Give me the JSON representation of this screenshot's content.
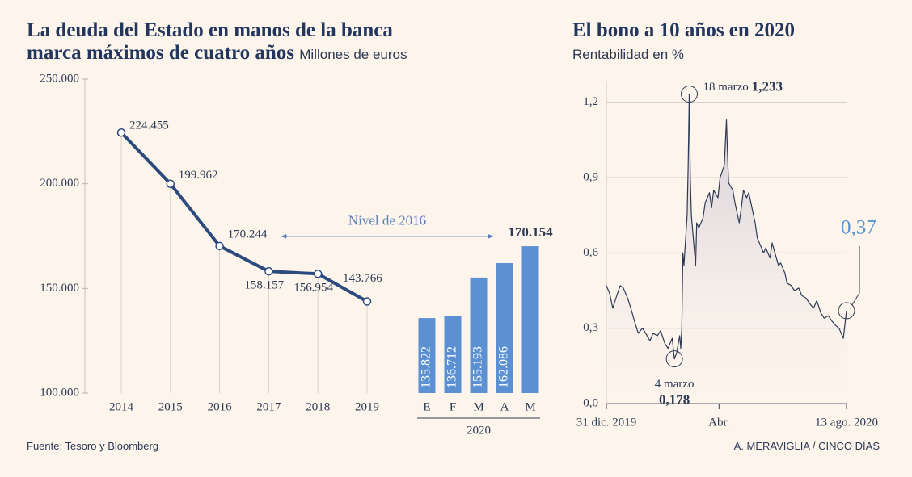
{
  "chart_data": [
    {
      "type": "line",
      "title": "La deuda del Estado en manos de la banca marca máximos de cuatro años",
      "subtitle": "Millones de euros",
      "categories": [
        "2014",
        "2015",
        "2016",
        "2017",
        "2018",
        "2019"
      ],
      "values": [
        224455,
        199962,
        170244,
        158157,
        156954,
        143766
      ],
      "value_labels": [
        "224.455",
        "199.962",
        "170.244",
        "158.157",
        "156.954",
        "143.766"
      ],
      "color": "#2b4a7e",
      "annotation": "Nivel de 2016",
      "ylim": [
        100000,
        250000
      ],
      "yticks": [
        {
          "value": 100000,
          "label": "100.000"
        },
        {
          "value": 150000,
          "label": "150.000"
        },
        {
          "value": 200000,
          "label": "200.000"
        },
        {
          "value": 250000,
          "label": "250.000"
        }
      ]
    },
    {
      "type": "bar",
      "xlabel": "2020",
      "categories": [
        "E",
        "F",
        "M",
        "A",
        "M"
      ],
      "values": [
        135822,
        136712,
        155193,
        162086,
        170154
      ],
      "value_labels": [
        "135.822",
        "136.712",
        "155.193",
        "162.086",
        "170.154"
      ],
      "color": "#5b91d2",
      "ylim": [
        100000,
        250000
      ]
    },
    {
      "type": "line",
      "title": "El bono a 10 años en 2020",
      "subtitle": "Rentabilidad en %",
      "color": "#2e3a55",
      "highlight_color": "#5b91d2",
      "grid": true,
      "x": [
        "2019-12-31",
        "2020-01-03",
        "2020-01-06",
        "2020-01-09",
        "2020-01-13",
        "2020-01-16",
        "2020-01-20",
        "2020-01-23",
        "2020-01-27",
        "2020-01-30",
        "2020-02-03",
        "2020-02-06",
        "2020-02-10",
        "2020-02-13",
        "2020-02-17",
        "2020-02-20",
        "2020-02-24",
        "2020-02-27",
        "2020-03-02",
        "2020-03-04",
        "2020-03-06",
        "2020-03-09",
        "2020-03-10",
        "2020-03-11",
        "2020-03-12",
        "2020-03-13",
        "2020-03-16",
        "2020-03-17",
        "2020-03-18",
        "2020-03-19",
        "2020-03-20",
        "2020-03-23",
        "2020-03-24",
        "2020-03-25",
        "2020-03-27",
        "2020-03-31",
        "2020-04-02",
        "2020-04-06",
        "2020-04-08",
        "2020-04-10",
        "2020-04-14",
        "2020-04-16",
        "2020-04-20",
        "2020-04-22",
        "2020-04-23",
        "2020-04-24",
        "2020-04-28",
        "2020-04-30",
        "2020-05-04",
        "2020-05-06",
        "2020-05-08",
        "2020-05-11",
        "2020-05-13",
        "2020-05-15",
        "2020-05-19",
        "2020-05-21",
        "2020-05-25",
        "2020-05-27",
        "2020-05-29",
        "2020-06-02",
        "2020-06-04",
        "2020-06-08",
        "2020-06-10",
        "2020-06-12",
        "2020-06-16",
        "2020-06-18",
        "2020-06-22",
        "2020-06-25",
        "2020-06-29",
        "2020-07-02",
        "2020-07-06",
        "2020-07-09",
        "2020-07-13",
        "2020-07-16",
        "2020-07-20",
        "2020-07-23",
        "2020-07-27",
        "2020-07-30",
        "2020-08-03",
        "2020-08-06",
        "2020-08-10",
        "2020-08-13"
      ],
      "values": [
        0.47,
        0.44,
        0.38,
        0.42,
        0.47,
        0.46,
        0.42,
        0.38,
        0.32,
        0.28,
        0.3,
        0.28,
        0.25,
        0.28,
        0.27,
        0.29,
        0.24,
        0.22,
        0.26,
        0.178,
        0.2,
        0.27,
        0.22,
        0.3,
        0.6,
        0.55,
        0.75,
        0.95,
        1.233,
        0.9,
        0.75,
        0.6,
        0.55,
        0.72,
        0.7,
        0.74,
        0.8,
        0.84,
        0.78,
        0.85,
        0.82,
        0.9,
        0.95,
        1.13,
        1.0,
        0.88,
        0.85,
        0.8,
        0.72,
        0.78,
        0.85,
        0.82,
        0.84,
        0.8,
        0.72,
        0.66,
        0.62,
        0.6,
        0.62,
        0.58,
        0.64,
        0.58,
        0.55,
        0.56,
        0.52,
        0.48,
        0.47,
        0.45,
        0.46,
        0.43,
        0.42,
        0.4,
        0.38,
        0.41,
        0.36,
        0.34,
        0.35,
        0.33,
        0.31,
        0.3,
        0.26,
        0.37
      ],
      "value_labels": [
        null,
        null,
        null,
        null,
        null,
        null,
        null,
        null,
        null,
        null,
        null,
        null,
        null,
        null,
        null,
        null,
        null,
        null,
        null,
        "0,178",
        null,
        null,
        null,
        null,
        null,
        null,
        null,
        null,
        "1,233",
        null,
        null,
        null,
        null,
        null,
        null,
        null,
        null,
        null,
        null,
        null,
        null,
        null,
        null,
        null,
        null,
        null,
        null,
        null,
        null,
        null,
        null,
        null,
        null,
        null,
        null,
        null,
        null,
        null,
        null,
        null,
        null,
        null,
        null,
        null,
        null,
        null,
        null,
        null,
        null,
        null,
        null,
        null,
        null,
        null,
        null,
        null,
        null,
        null,
        null,
        null,
        null,
        "0,37"
      ],
      "annotations": [
        {
          "text": "18 marzo",
          "x": "2020-03-18"
        },
        {
          "text": "4 marzo",
          "x": "2020-03-04"
        }
      ],
      "xlim": [
        "2019-12-31",
        "2020-08-13"
      ],
      "xticks": [
        {
          "value": "2019-12-31",
          "label": "31 dic. 2019"
        },
        {
          "value": "2020-04-15",
          "label": "Abr."
        },
        {
          "value": "2020-08-13",
          "label": "13 ago. 2020"
        }
      ],
      "ylim": [
        0,
        1.27
      ],
      "yticks": [
        {
          "value": 0,
          "label": "0,0"
        },
        {
          "value": 0.3,
          "label": "0,3"
        },
        {
          "value": 0.6,
          "label": "0,6"
        },
        {
          "value": 0.9,
          "label": "0,9"
        },
        {
          "value": 1.2,
          "label": "1,2"
        }
      ]
    }
  ],
  "source": "Fuente: Tesoro y Bloomberg",
  "credit": "A. MERAVIGLIA / CINCO DÍAS"
}
